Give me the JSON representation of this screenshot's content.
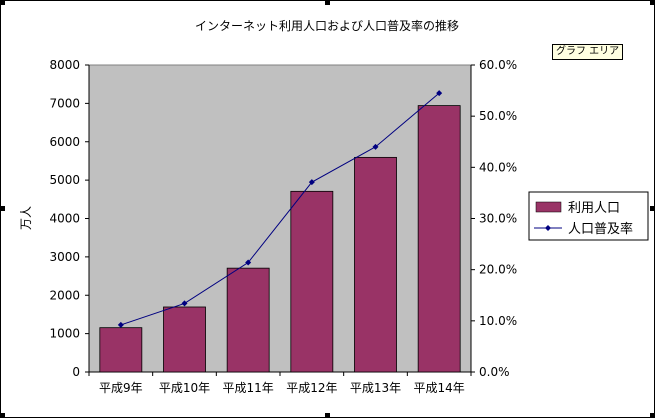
{
  "tooltip": "グラフ エリア",
  "chart_data": {
    "type": "bar+line",
    "title": "インターネット利用人口および人口普及率の推移",
    "categories": [
      "平成9年",
      "平成10年",
      "平成11年",
      "平成12年",
      "平成13年",
      "平成14年"
    ],
    "ylabel": "万人",
    "ylim": [
      0,
      8000
    ],
    "y_ticks": [
      "0",
      "1000",
      "2000",
      "3000",
      "4000",
      "5000",
      "6000",
      "7000",
      "8000"
    ],
    "y2lim": [
      0,
      60
    ],
    "y2_ticks": [
      "0.0%",
      "10.0%",
      "20.0%",
      "30.0%",
      "40.0%",
      "50.0%",
      "60.0%"
    ],
    "series": [
      {
        "name": "利用人口",
        "type": "bar",
        "color": "#993366",
        "values": [
          1155,
          1694,
          2706,
          4708,
          5593,
          6942
        ]
      },
      {
        "name": "人口普及率",
        "type": "line",
        "color": "#000080",
        "values": [
          9.2,
          13.4,
          21.4,
          37.1,
          44.0,
          54.5
        ]
      }
    ],
    "plot_background": "#c0c0c0",
    "grid": false,
    "legend_position": "right"
  }
}
